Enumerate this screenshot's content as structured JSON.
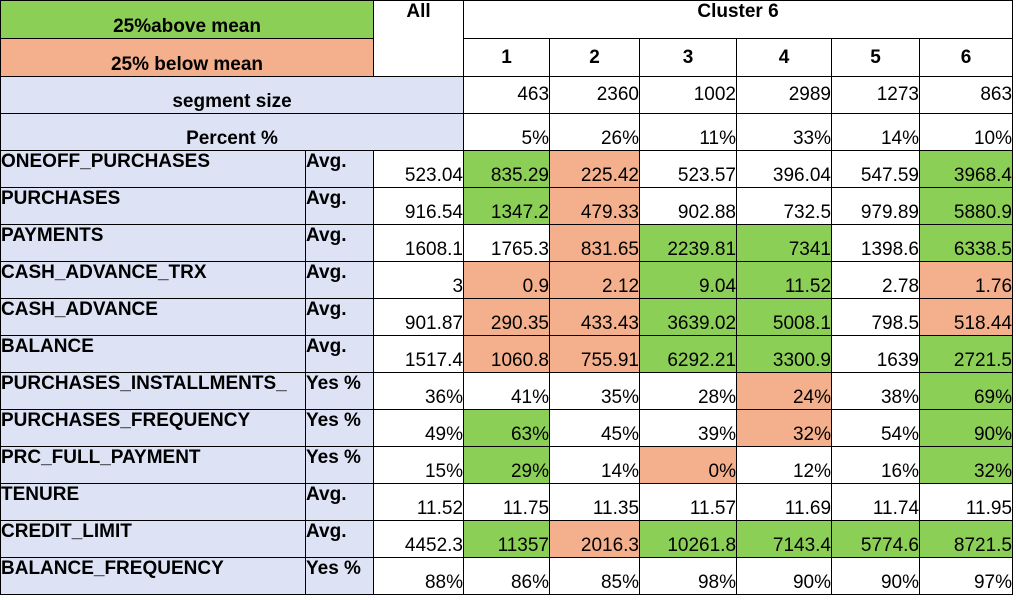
{
  "legend": {
    "above": "25%above mean",
    "below": "25% below mean"
  },
  "header": {
    "all": "All",
    "cluster_title": "Cluster 6",
    "clusters": [
      "1",
      "2",
      "3",
      "4",
      "5",
      "6"
    ]
  },
  "segment": {
    "label": "segment size",
    "values": [
      "463",
      "2360",
      "1002",
      "2989",
      "1273",
      "863"
    ]
  },
  "percent": {
    "label": "Percent %",
    "values": [
      "5%",
      "26%",
      "11%",
      "33%",
      "14%",
      "10%"
    ]
  },
  "colors": {
    "above_mean": "#8ccf57",
    "below_mean": "#f4b08c",
    "header_text": "#1f3a93",
    "label_bg": "#dde3f5"
  },
  "rows": [
    {
      "name": "ONEOFF_PURCHASES",
      "stat": "Avg.",
      "all": "523.04",
      "cells": [
        {
          "v": "835.29",
          "c": "g"
        },
        {
          "v": "225.42",
          "c": "o"
        },
        {
          "v": "523.57",
          "c": ""
        },
        {
          "v": "396.04",
          "c": ""
        },
        {
          "v": "547.59",
          "c": ""
        },
        {
          "v": "3968.4",
          "c": "g"
        }
      ]
    },
    {
      "name": "PURCHASES",
      "stat": "Avg.",
      "all": "916.54",
      "cells": [
        {
          "v": "1347.2",
          "c": "g"
        },
        {
          "v": "479.33",
          "c": "o"
        },
        {
          "v": "902.88",
          "c": ""
        },
        {
          "v": "732.5",
          "c": ""
        },
        {
          "v": "979.89",
          "c": ""
        },
        {
          "v": "5880.9",
          "c": "g"
        }
      ]
    },
    {
      "name": "PAYMENTS",
      "stat": "Avg.",
      "all": "1608.1",
      "cells": [
        {
          "v": "1765.3",
          "c": ""
        },
        {
          "v": "831.65",
          "c": "o"
        },
        {
          "v": "2239.81",
          "c": "g"
        },
        {
          "v": "7341",
          "c": "g"
        },
        {
          "v": "1398.6",
          "c": ""
        },
        {
          "v": "6338.5",
          "c": "g"
        }
      ]
    },
    {
      "name": "CASH_ADVANCE_TRX",
      "stat": "Avg.",
      "all": "3",
      "cells": [
        {
          "v": "0.9",
          "c": "o"
        },
        {
          "v": "2.12",
          "c": "o"
        },
        {
          "v": "9.04",
          "c": "g"
        },
        {
          "v": "11.52",
          "c": "g"
        },
        {
          "v": "2.78",
          "c": ""
        },
        {
          "v": "1.76",
          "c": "o"
        }
      ]
    },
    {
      "name": "CASH_ADVANCE",
      "stat": "Avg.",
      "all": "901.87",
      "cells": [
        {
          "v": "290.35",
          "c": "o"
        },
        {
          "v": "433.43",
          "c": "o"
        },
        {
          "v": "3639.02",
          "c": "g"
        },
        {
          "v": "5008.1",
          "c": "g"
        },
        {
          "v": "798.5",
          "c": ""
        },
        {
          "v": "518.44",
          "c": "o"
        }
      ]
    },
    {
      "name": "BALANCE",
      "stat": "Avg.",
      "all": "1517.4",
      "cells": [
        {
          "v": "1060.8",
          "c": "o"
        },
        {
          "v": "755.91",
          "c": "o"
        },
        {
          "v": "6292.21",
          "c": "g"
        },
        {
          "v": "3300.9",
          "c": "g"
        },
        {
          "v": "1639",
          "c": ""
        },
        {
          "v": "2721.5",
          "c": "g"
        }
      ]
    },
    {
      "name": "PURCHASES_INSTALLMENTS_",
      "stat": "Yes %",
      "all": "36%",
      "cells": [
        {
          "v": "41%",
          "c": ""
        },
        {
          "v": "35%",
          "c": ""
        },
        {
          "v": "28%",
          "c": ""
        },
        {
          "v": "24%",
          "c": "o"
        },
        {
          "v": "38%",
          "c": ""
        },
        {
          "v": "69%",
          "c": "g"
        }
      ]
    },
    {
      "name": "PURCHASES_FREQUENCY",
      "stat": "Yes %",
      "all": "49%",
      "cells": [
        {
          "v": "63%",
          "c": "g"
        },
        {
          "v": "45%",
          "c": ""
        },
        {
          "v": "39%",
          "c": ""
        },
        {
          "v": "32%",
          "c": "o"
        },
        {
          "v": "54%",
          "c": ""
        },
        {
          "v": "90%",
          "c": "g"
        }
      ]
    },
    {
      "name": "PRC_FULL_PAYMENT",
      "stat": "Yes %",
      "all": "15%",
      "cells": [
        {
          "v": "29%",
          "c": "g"
        },
        {
          "v": "14%",
          "c": ""
        },
        {
          "v": "0%",
          "c": "o"
        },
        {
          "v": "12%",
          "c": ""
        },
        {
          "v": "16%",
          "c": ""
        },
        {
          "v": "32%",
          "c": "g"
        }
      ]
    },
    {
      "name": "TENURE",
      "stat": "Avg.",
      "all": "11.52",
      "cells": [
        {
          "v": "11.75",
          "c": ""
        },
        {
          "v": "11.35",
          "c": ""
        },
        {
          "v": "11.57",
          "c": ""
        },
        {
          "v": "11.69",
          "c": ""
        },
        {
          "v": "11.74",
          "c": ""
        },
        {
          "v": "11.95",
          "c": ""
        }
      ]
    },
    {
      "name": "CREDIT_LIMIT",
      "stat": "Avg.",
      "all": "4452.3",
      "cells": [
        {
          "v": "11357",
          "c": "g"
        },
        {
          "v": "2016.3",
          "c": "o"
        },
        {
          "v": "10261.8",
          "c": "g"
        },
        {
          "v": "7143.4",
          "c": "g"
        },
        {
          "v": "5774.6",
          "c": "g"
        },
        {
          "v": "8721.5",
          "c": "g"
        }
      ]
    },
    {
      "name": "BALANCE_FREQUENCY",
      "stat": "Yes %",
      "all": "88%",
      "cells": [
        {
          "v": "86%",
          "c": ""
        },
        {
          "v": "85%",
          "c": ""
        },
        {
          "v": "98%",
          "c": ""
        },
        {
          "v": "90%",
          "c": ""
        },
        {
          "v": "90%",
          "c": ""
        },
        {
          "v": "97%",
          "c": ""
        }
      ]
    }
  ]
}
